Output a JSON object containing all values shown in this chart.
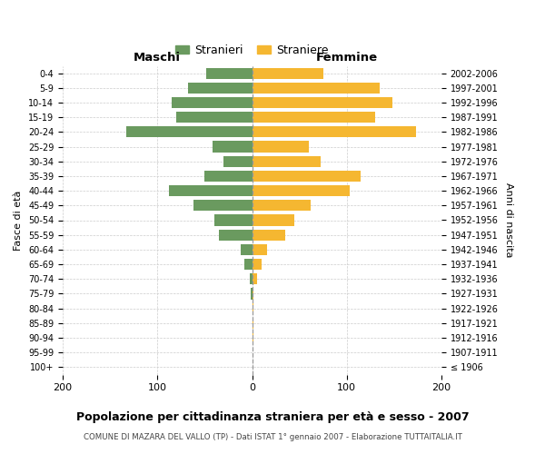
{
  "age_groups": [
    "100+",
    "95-99",
    "90-94",
    "85-89",
    "80-84",
    "75-79",
    "70-74",
    "65-69",
    "60-64",
    "55-59",
    "50-54",
    "45-49",
    "40-44",
    "35-39",
    "30-34",
    "25-29",
    "20-24",
    "15-19",
    "10-14",
    "5-9",
    "0-4"
  ],
  "birth_years": [
    "≤ 1906",
    "1907-1911",
    "1912-1916",
    "1917-1921",
    "1922-1926",
    "1927-1931",
    "1932-1936",
    "1937-1941",
    "1942-1946",
    "1947-1951",
    "1952-1956",
    "1957-1961",
    "1962-1966",
    "1967-1971",
    "1972-1976",
    "1977-1981",
    "1982-1986",
    "1987-1991",
    "1992-1996",
    "1997-2001",
    "2002-2006"
  ],
  "maschi": [
    0,
    0,
    0,
    0,
    0,
    1,
    2,
    8,
    12,
    35,
    40,
    62,
    88,
    50,
    30,
    42,
    133,
    80,
    85,
    68,
    48
  ],
  "femmine": [
    0,
    0,
    1,
    1,
    1,
    1,
    5,
    10,
    16,
    35,
    45,
    62,
    103,
    115,
    72,
    60,
    173,
    130,
    148,
    135,
    75
  ],
  "maschi_color": "#6a9a5f",
  "femmine_color": "#f5b731",
  "background_color": "#ffffff",
  "grid_color": "#cccccc",
  "title": "Popolazione per cittadinanza straniera per età e sesso - 2007",
  "subtitle": "COMUNE DI MAZARA DEL VALLO (TP) - Dati ISTAT 1° gennaio 2007 - Elaborazione TUTTAITALIA.IT",
  "xlabel_left": "Maschi",
  "xlabel_right": "Femmine",
  "ylabel_left": "Fasce di età",
  "ylabel_right": "Anni di nascita",
  "legend_maschi": "Stranieri",
  "legend_femmine": "Straniere",
  "xlim": 200,
  "bar_height": 0.75
}
